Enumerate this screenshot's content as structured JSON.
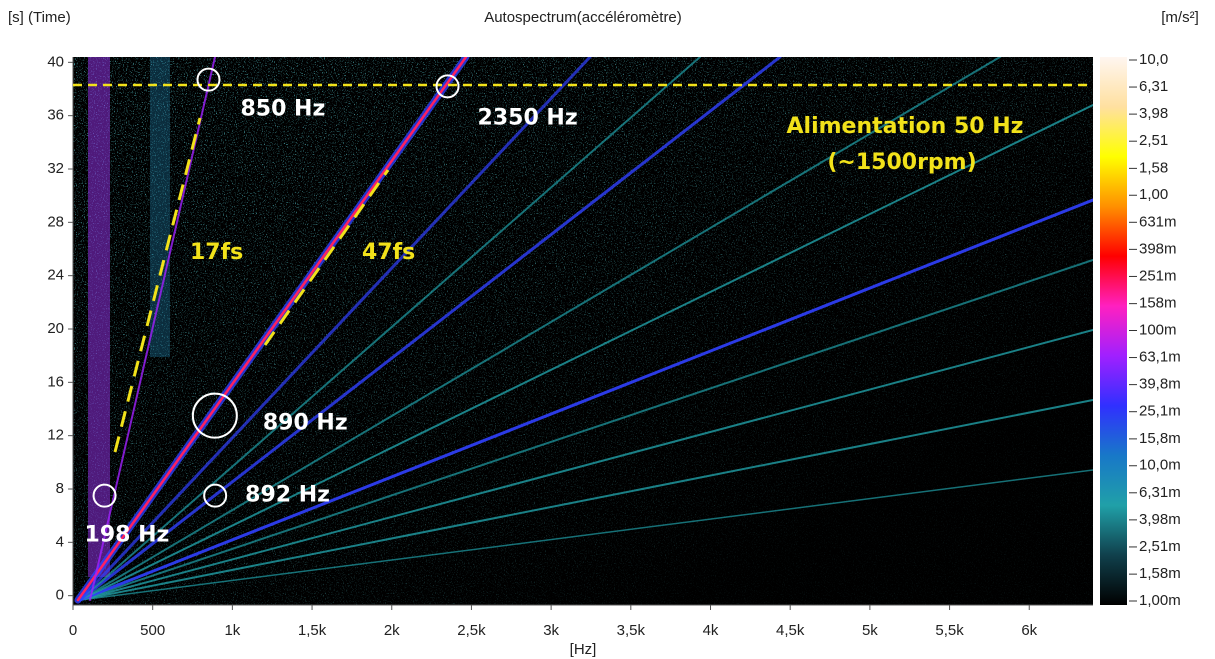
{
  "chart_data": {
    "type": "spectrogram",
    "title": "Autospectrum(accéléromètre)",
    "y_label": "[s] (Time)",
    "x_label": "[Hz]",
    "colorbar_label": "[m/s²]",
    "xlim": [
      0,
      6400
    ],
    "ylim": [
      -0.7,
      40.4
    ],
    "xticks": [
      0,
      500,
      {
        "value": 1000,
        "label": "1k"
      },
      {
        "value": 1500,
        "label": "1,5k"
      },
      {
        "value": 2000,
        "label": "2k"
      },
      {
        "value": 2500,
        "label": "2,5k"
      },
      {
        "value": 3000,
        "label": "3k"
      },
      {
        "value": 3500,
        "label": "3,5k"
      },
      {
        "value": 4000,
        "label": "4k"
      },
      {
        "value": 4500,
        "label": "4,5k"
      },
      {
        "value": 5000,
        "label": "5k"
      },
      {
        "value": 5500,
        "label": "5,5k"
      },
      {
        "value": 6000,
        "label": "6k"
      }
    ],
    "yticks": [
      0,
      4,
      8,
      12,
      16,
      20,
      24,
      28,
      32,
      36,
      40
    ],
    "clim": [
      0.001,
      10
    ],
    "color_scale": "log",
    "colorbar_ticks": [
      {
        "value": 10,
        "label": "10,0"
      },
      {
        "value": 6.31,
        "label": "6,31"
      },
      {
        "value": 3.98,
        "label": "3,98"
      },
      {
        "value": 2.51,
        "label": "2,51"
      },
      {
        "value": 1.58,
        "label": "1,58"
      },
      {
        "value": 1,
        "label": "1,00"
      },
      {
        "value": 0.631,
        "label": "631m"
      },
      {
        "value": 0.398,
        "label": "398m"
      },
      {
        "value": 0.251,
        "label": "251m"
      },
      {
        "value": 0.158,
        "label": "158m"
      },
      {
        "value": 0.1,
        "label": "100m"
      },
      {
        "value": 0.0631,
        "label": "63,1m"
      },
      {
        "value": 0.0398,
        "label": "39,8m"
      },
      {
        "value": 0.0251,
        "label": "25,1m"
      },
      {
        "value": 0.0158,
        "label": "15,8m"
      },
      {
        "value": 0.01,
        "label": "10,0m"
      },
      {
        "value": 0.00631,
        "label": "6,31m"
      },
      {
        "value": 0.00398,
        "label": "3,98m"
      },
      {
        "value": 0.00251,
        "label": "2,51m"
      },
      {
        "value": 0.00158,
        "label": "1,58m"
      },
      {
        "value": 0.001,
        "label": "1,00m"
      }
    ],
    "colormap": [
      "#fff6f0",
      "#ffe0a0",
      "#ffff00",
      "#ff9000",
      "#ff0000",
      "#ff20c0",
      "#a020ff",
      "#3030ff",
      "#1878c8",
      "#20a0a8",
      "#10404c",
      "#000000"
    ],
    "annotations": [
      {
        "text": "850 Hz",
        "x": 850,
        "y": 38.7
      },
      {
        "text": "2350 Hz",
        "x": 2350,
        "y": 38.2
      },
      {
        "text": "890 Hz",
        "x": 890,
        "y": 13.5
      },
      {
        "text": "892 Hz",
        "x": 892,
        "y": 7.5
      },
      {
        "text": "198 Hz",
        "x": 198,
        "y": 7.5
      }
    ],
    "reference_line": 38.3,
    "reference_color": "#f2e21a",
    "notes": [
      "17fs",
      "47fs",
      "Alimentation 50 Hz",
      "(~1500rpm)"
    ]
  }
}
